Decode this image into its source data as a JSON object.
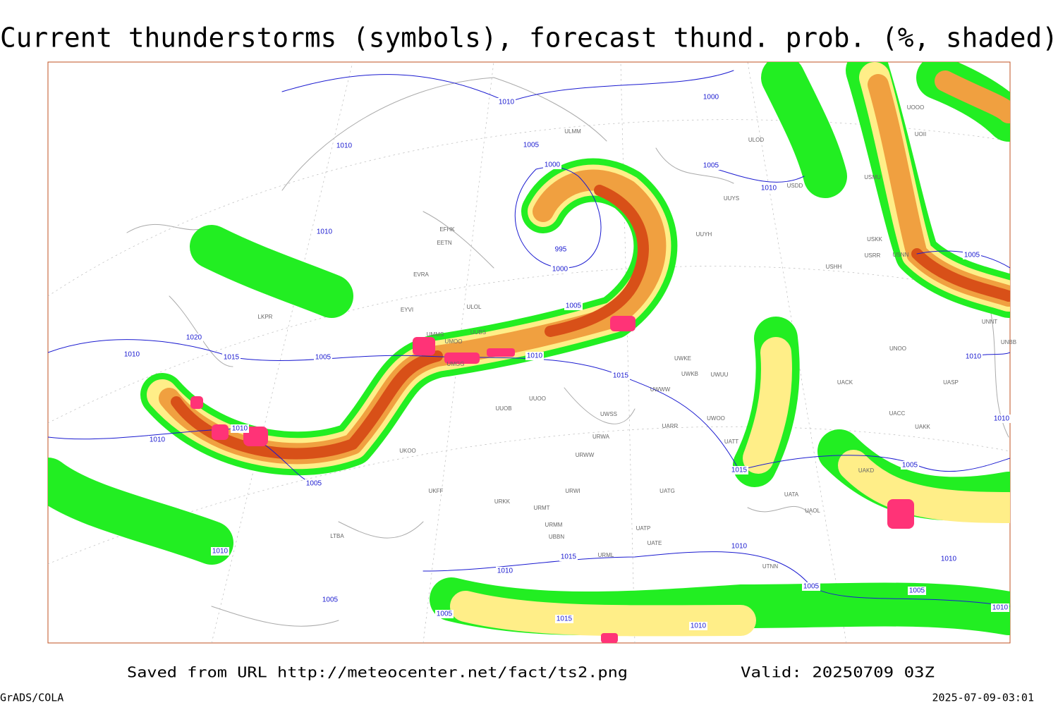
{
  "header": {
    "title": "Current thunderstorms (symbols), forecast thund. prob. (%, shaded)"
  },
  "footer": {
    "source": "Saved from URL http://meteocenter.net/fact/ts2.png",
    "valid": "Valid: 20250709 03Z",
    "software": "GrADS/COLA",
    "timestamp": "2025-07-09-03:01"
  },
  "isobar_labels": [
    1010,
    1000,
    1010,
    1005,
    1000,
    1005,
    1010,
    1010,
    995,
    1000,
    1005,
    1005,
    1020,
    1010,
    1015,
    1005,
    1010,
    1015,
    1010,
    1010,
    1010,
    1010,
    1005,
    1015,
    1005,
    1010,
    1010,
    1010,
    1015,
    1010,
    1005,
    1005,
    1005,
    1005,
    1015,
    1010,
    1010
  ],
  "stations": [
    "ULMM",
    "ULOD",
    "USDD",
    "UUYS",
    "USMU",
    "UOOO",
    "UOII",
    "USKK",
    "USRR",
    "USNN",
    "USHH",
    "UUYH",
    "EFHK",
    "EETN",
    "EVRA",
    "ULOL",
    "EYVI",
    "UMMS",
    "UUBS",
    "UMOO",
    "UMGG",
    "UUOO",
    "UUOB",
    "UWKE",
    "UWKB",
    "UWUU",
    "UWWW",
    "UWSS",
    "UARR",
    "UWOO",
    "URWA",
    "URWW",
    "UATT",
    "UACK",
    "UASP",
    "UACC",
    "UAKK",
    "UAKD",
    "UATG",
    "UATA",
    "UAOL",
    "URWI",
    "URMT",
    "URMM",
    "UBBN",
    "UATP",
    "UATE",
    "UTNN",
    "URML",
    "UKOO",
    "UKFF",
    "URKK",
    "LTBA",
    "UNNT",
    "UNBB",
    "UNOO",
    "LKPR"
  ]
}
